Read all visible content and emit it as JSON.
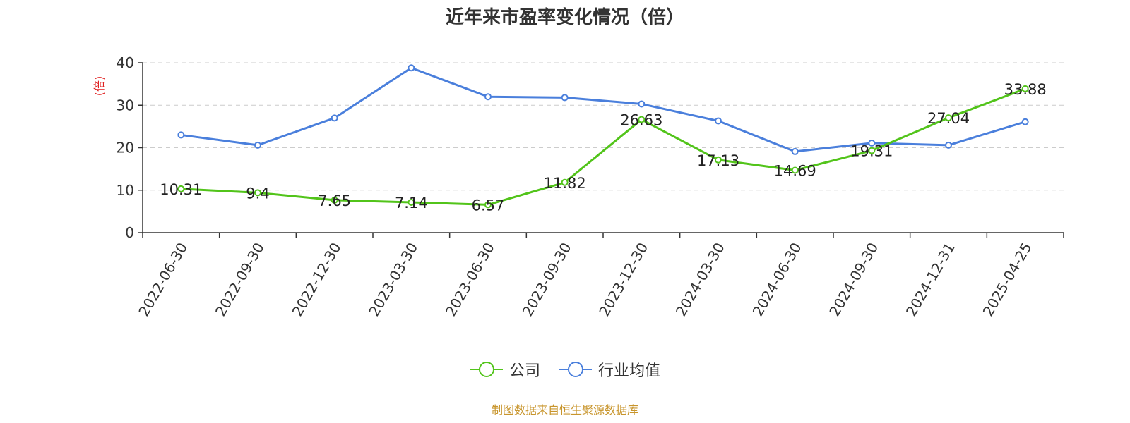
{
  "chart_data": {
    "type": "line",
    "title": "近年来市盈率变化情况（倍）",
    "ylabel": "(倍)",
    "xlabel": "",
    "ylim": [
      0,
      40
    ],
    "yticks": [
      0,
      10,
      20,
      30,
      40
    ],
    "grid": true,
    "legend_position": "bottom-center",
    "categories": [
      "2022-06-30",
      "2022-09-30",
      "2022-12-30",
      "2023-03-30",
      "2023-06-30",
      "2023-09-30",
      "2023-12-30",
      "2024-03-30",
      "2024-06-30",
      "2024-09-30",
      "2024-12-31",
      "2025-04-25"
    ],
    "series": [
      {
        "name": "公司",
        "color": "#52c41a",
        "values": [
          10.31,
          9.4,
          7.65,
          7.14,
          6.57,
          11.82,
          26.63,
          17.13,
          14.69,
          19.31,
          27.04,
          33.88
        ],
        "labels": [
          "10.31",
          "9.4",
          "7.65",
          "7.14",
          "6.57",
          "11.82",
          "26.63",
          "17.13",
          "14.69",
          "19.31",
          "27.04",
          "33.88"
        ]
      },
      {
        "name": "行业均值",
        "color": "#4a7fdc",
        "values": [
          23.0,
          20.6,
          27.0,
          38.8,
          32.0,
          31.8,
          30.3,
          26.3,
          19.1,
          21.1,
          20.6,
          26.1
        ]
      }
    ]
  },
  "source_note": "制图数据来自恒生聚源数据库",
  "colors": {
    "ylabel": "#e02020",
    "source": "#c8952c",
    "axis": "#333333",
    "grid": "#cccccc"
  }
}
